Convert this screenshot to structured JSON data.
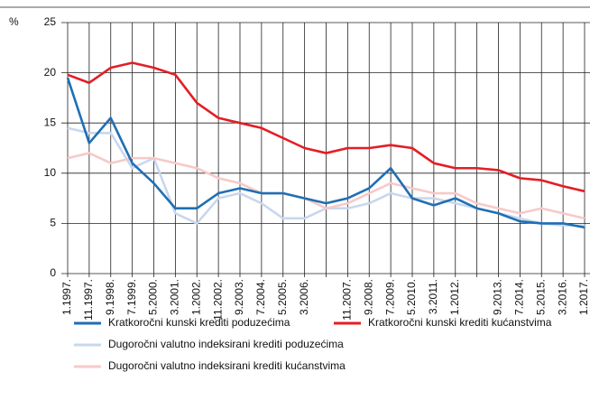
{
  "chart_data": {
    "type": "line",
    "y_label": "%",
    "categories": [
      "1.1997.",
      "11.1997.",
      "9.1998.",
      "7.1999.",
      "5.2000.",
      "3.2001.",
      "1.2002.",
      "11.2002.",
      "9.2003.",
      "7.2004.",
      "5.2005.",
      "3.2006.",
      null,
      "11.2007.",
      "9.2008.",
      "7.2009.",
      "5.2010.",
      "3.2011.",
      "1.2012.",
      null,
      "9.2013.",
      "7.2014.",
      "5.2015.",
      "3.2016.",
      "1.2017."
    ],
    "series": [
      {
        "name": "Kratkoročni kunski krediti poduzećima",
        "color": "#1f6fb4",
        "values": [
          19.5,
          13,
          15.5,
          11,
          9,
          6.5,
          6.5,
          8,
          8.5,
          8,
          8,
          7.5,
          7,
          7.5,
          8.5,
          10.5,
          7.5,
          6.8,
          7.5,
          6.5,
          6,
          5.2,
          5,
          5,
          4.6
        ]
      },
      {
        "name": "Kratkoročni kunski krediti kućanstvima",
        "color": "#e31e24",
        "values": [
          19.8,
          19,
          20.5,
          21,
          20.5,
          19.8,
          17,
          15.5,
          15,
          14.5,
          13.5,
          12.5,
          12,
          12.5,
          12.5,
          12.8,
          12.5,
          11,
          10.5,
          10.5,
          10.3,
          9.5,
          9.3,
          8.7,
          8.2
        ]
      },
      {
        "name": "Dugoročni valutno indeksirani krediti poduzećima",
        "color": "#c9d7ee",
        "values": [
          14.5,
          14,
          14,
          10.5,
          11.5,
          6,
          5,
          7.5,
          8,
          7,
          5.5,
          5.5,
          6.5,
          6.5,
          7,
          8,
          7.5,
          7.5,
          7,
          6.5,
          6,
          5.5,
          5,
          4.8,
          4.8
        ]
      },
      {
        "name": "Dugoročni valutno indeksirani krediti kućanstvima",
        "color": "#f7c9c9",
        "values": [
          11.5,
          12,
          11,
          11.5,
          11.5,
          11,
          10.5,
          9.5,
          9,
          8,
          8,
          7.5,
          6.5,
          7,
          8,
          9,
          8.5,
          8,
          8,
          7,
          6.5,
          6,
          6.5,
          6,
          5.5
        ]
      }
    ],
    "ylim": [
      0,
      25
    ],
    "yticks": [
      0,
      5,
      10,
      15,
      20,
      25
    ],
    "grid": true
  }
}
